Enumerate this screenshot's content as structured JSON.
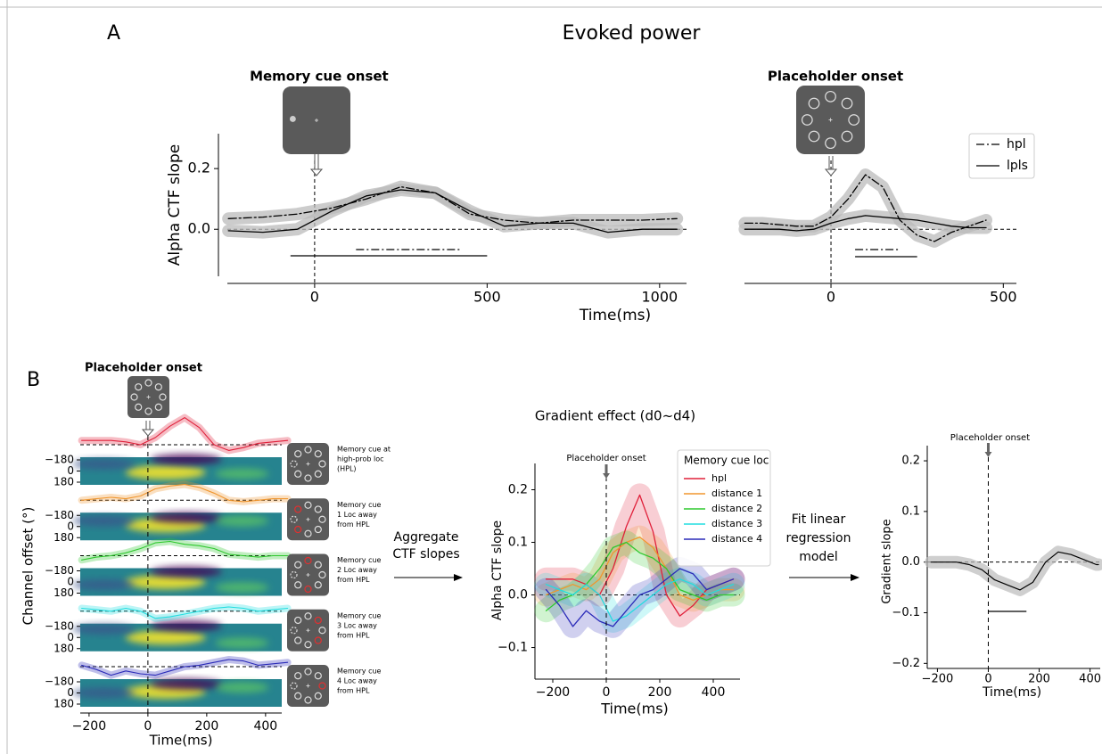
{
  "panel_a": {
    "label": "A",
    "title": "Evoked power",
    "ylabel": "Alpha CTF slope",
    "xlabel": "Time(ms)",
    "legend": [
      "hpl",
      "lpls"
    ],
    "ylim": [
      -0.155,
      0.315
    ],
    "yticks": [
      {
        "value": 0,
        "label": "0.0"
      },
      {
        "value": 0.2,
        "label": "0.2"
      }
    ],
    "left": {
      "annotation": "Memory cue onset",
      "xlim": [
        -253,
        1078
      ],
      "xticks": [
        0,
        500,
        1000
      ],
      "x": [
        -250,
        -150,
        -50,
        50,
        150,
        250,
        350,
        450,
        550,
        650,
        750,
        850,
        950,
        1050
      ],
      "hpl": [
        0.035,
        0.04,
        0.05,
        0.07,
        0.1,
        0.14,
        0.12,
        0.05,
        0.03,
        0.02,
        0.03,
        0.03,
        0.03,
        0.035
      ],
      "lpls": [
        -0.005,
        -0.01,
        0.0,
        0.06,
        0.11,
        0.13,
        0.12,
        0.06,
        0.01,
        0.02,
        0.02,
        -0.01,
        0.0,
        0.0
      ],
      "sig_hpl": [
        120,
        420
      ],
      "sig_lpls": [
        -70,
        500
      ]
    },
    "right": {
      "annotation": "Placeholder onset",
      "xlim": [
        -251,
        538
      ],
      "xticks": [
        0,
        500
      ],
      "x": [
        -250,
        -200,
        -150,
        -100,
        -50,
        0,
        50,
        100,
        150,
        200,
        250,
        300,
        350,
        400,
        450
      ],
      "hpl": [
        0.02,
        0.02,
        0.015,
        0.01,
        0.01,
        0.04,
        0.1,
        0.18,
        0.14,
        0.03,
        -0.02,
        -0.04,
        -0.01,
        0.01,
        0.03
      ],
      "lpls": [
        0.0,
        0.0,
        0.0,
        -0.005,
        0.0,
        0.02,
        0.035,
        0.045,
        0.04,
        0.035,
        0.03,
        0.02,
        0.01,
        0.005,
        0.005
      ],
      "sig_hpl": [
        70,
        200
      ],
      "sig_lpls": [
        70,
        250
      ]
    }
  },
  "panel_b": {
    "label": "B",
    "annotation": "Placeholder onset",
    "ylabel": "Channel offset (°)",
    "xlabel": "Time(ms)",
    "xlim": [
      -230,
      455
    ],
    "xticks": [
      {
        "value": -200,
        "label": "−200"
      },
      0,
      200,
      400
    ],
    "heatmap_yticks": [
      {
        "value": -180,
        "label": "−180"
      },
      0,
      180
    ],
    "rows": [
      [
        "Memory cue at",
        "high-prob loc",
        "(HPL)"
      ],
      [
        "Memory cue",
        "1 Loc away",
        "from HPL"
      ],
      [
        "Memory cue",
        "2 Loc away",
        "from HPL"
      ],
      [
        "Memory cue",
        "3 Loc away",
        "from HPL"
      ],
      [
        "Memory cue",
        "4 Loc away",
        "from HPL"
      ]
    ],
    "arrow_text": [
      "Aggregate",
      "CTF slopes"
    ],
    "gradient": {
      "title": "Gradient effect (d0~d4)",
      "annotation": "Placeholder onset",
      "ylabel": "Alpha CTF slope",
      "xlabel": "Time(ms)",
      "legend_title": "Memory cue loc",
      "xlim": [
        -250,
        500
      ],
      "ylim": [
        -0.155,
        0.25
      ],
      "xticks": [
        {
          "value": -200,
          "label": "−200"
        },
        0,
        200,
        400
      ],
      "yticks": [
        {
          "value": -0.1,
          "label": "−0.1"
        },
        {
          "value": 0,
          "label": "0.0"
        },
        0.1,
        0.2
      ],
      "x": [
        -225,
        -175,
        -125,
        -75,
        -25,
        25,
        75,
        125,
        175,
        225,
        275,
        325,
        375,
        425,
        475
      ],
      "series": [
        {
          "name": "hpl",
          "color": "#e0203a",
          "values": [
            0.03,
            0.03,
            0.03,
            0.02,
            0.0,
            0.05,
            0.13,
            0.19,
            0.12,
            0.0,
            -0.04,
            -0.02,
            0.01,
            0.02,
            0.03
          ]
        },
        {
          "name": "distance 1",
          "color": "#f0962e",
          "values": [
            0.0,
            0.01,
            0.02,
            0.01,
            0.03,
            0.08,
            0.1,
            0.11,
            0.09,
            0.05,
            0.0,
            -0.01,
            0.0,
            0.01,
            0.01
          ]
        },
        {
          "name": "distance 2",
          "color": "#2ec82e",
          "values": [
            -0.03,
            -0.01,
            0.0,
            0.02,
            0.05,
            0.09,
            0.1,
            0.08,
            0.07,
            0.05,
            0.01,
            0.0,
            -0.01,
            0.0,
            0.0
          ]
        },
        {
          "name": "distance 3",
          "color": "#22dde0",
          "values": [
            0.02,
            0.01,
            0.0,
            0.02,
            0.0,
            -0.05,
            -0.04,
            -0.02,
            0.0,
            0.02,
            0.03,
            0.02,
            0.0,
            0.01,
            0.02
          ]
        },
        {
          "name": "distance 4",
          "color": "#2a2ab8",
          "values": [
            0.01,
            -0.02,
            -0.06,
            -0.03,
            -0.05,
            -0.06,
            -0.03,
            0.0,
            0.01,
            0.03,
            0.05,
            0.04,
            0.01,
            0.02,
            0.03
          ]
        }
      ]
    },
    "regression_arrow_text": [
      "Fit linear",
      "regression",
      "model"
    ],
    "regression": {
      "annotation": "Placeholder onset",
      "ylabel": "Gradient slope",
      "xlabel": "Time(ms)",
      "xlim": [
        -240,
        440
      ],
      "ylim": [
        -0.21,
        0.23
      ],
      "xticks": [
        {
          "value": -200,
          "label": "−200"
        },
        0,
        200,
        400
      ],
      "yticks": [
        {
          "value": -0.2,
          "label": "−0.2"
        },
        {
          "value": -0.1,
          "label": "−0.1"
        },
        {
          "value": 0,
          "label": "0.0"
        },
        0.1,
        0.2
      ],
      "x": [
        -225,
        -175,
        -125,
        -75,
        -25,
        25,
        75,
        125,
        175,
        225,
        275,
        325,
        375,
        425,
        475
      ],
      "values": [
        0.0,
        0.0,
        0.0,
        -0.005,
        -0.015,
        -0.035,
        -0.045,
        -0.055,
        -0.04,
        0.0,
        0.02,
        0.015,
        0.005,
        -0.005,
        -0.005
      ],
      "sig": [
        0,
        150
      ]
    }
  }
}
